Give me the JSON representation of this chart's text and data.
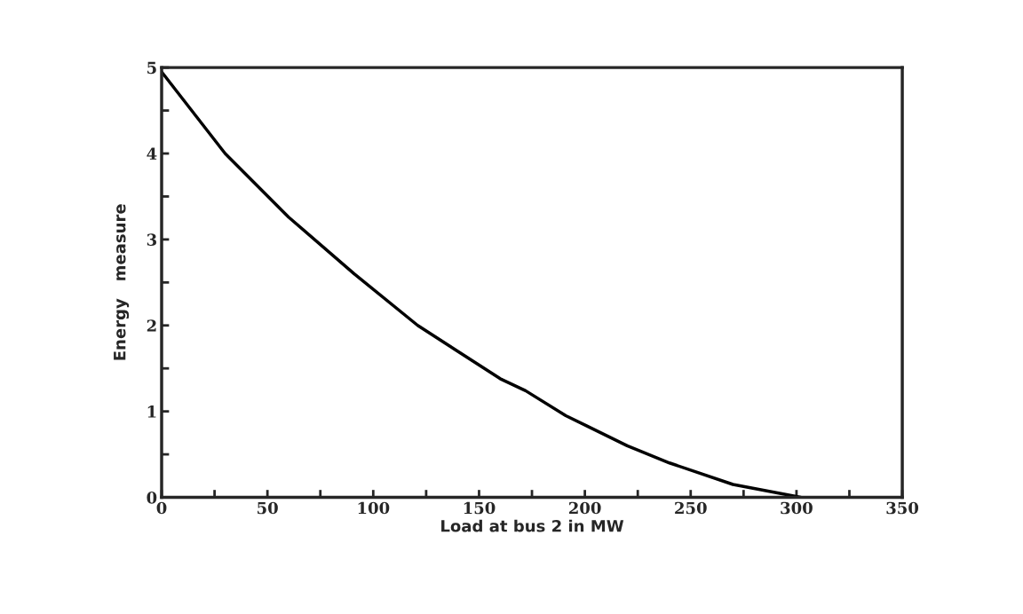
{
  "chart_data": {
    "type": "line",
    "xlabel": "Load at bus 2 in MW",
    "ylabel": "Energy   measure",
    "x": [
      0,
      30,
      60,
      91,
      121,
      160,
      172,
      191,
      201,
      220,
      240,
      270,
      302
    ],
    "series": [
      {
        "color": "#000000",
        "values": [
          4.95,
          4.0,
          3.26,
          2.6,
          2.0,
          1.38,
          1.24,
          0.95,
          0.83,
          0.6,
          0.4,
          0.15,
          0.0
        ]
      }
    ],
    "xlim": [
      0,
      350
    ],
    "ylim": [
      0,
      5
    ],
    "xticks": [
      0,
      {
        "value": 25,
        "label": null
      },
      50,
      {
        "value": 75,
        "label": null
      },
      100,
      {
        "value": 125,
        "label": null
      },
      150,
      {
        "value": 175,
        "label": null
      },
      200,
      {
        "value": 225,
        "label": null
      },
      250,
      {
        "value": 275,
        "label": null
      },
      300,
      {
        "value": 325,
        "label": null
      },
      350
    ],
    "yticks": [
      0,
      {
        "value": 0.5,
        "label": null
      },
      1,
      {
        "value": 1.5,
        "label": null
      },
      2,
      {
        "value": 2.5,
        "label": null
      },
      3,
      {
        "value": 3.5,
        "label": null
      },
      4,
      {
        "value": 4.5,
        "label": null
      },
      5
    ],
    "marker": "none",
    "line_style": "solid"
  }
}
